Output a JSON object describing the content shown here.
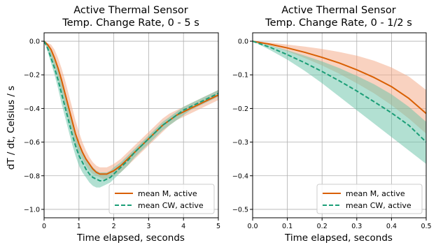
{
  "colors": {
    "mean_m": "#d95f02",
    "mean_cw": "#1b9e77",
    "band_m": "#f4a582",
    "band_cw": "#66c2a5",
    "grid": "#b0b0b0"
  },
  "chart_data": [
    {
      "type": "line",
      "title": "Active Thermal Sensor\nTemp. Change Rate, 0 - 5 s",
      "title_lines": [
        "Active Thermal Sensor",
        "Temp. Change Rate, 0 - 5 s"
      ],
      "xlabel": "Time elapsed, seconds",
      "ylabel": "dT / dt, Celsius / s",
      "xlim": [
        0,
        5
      ],
      "ylim": [
        -1.05,
        0.05
      ],
      "xticks": [
        0,
        1,
        2,
        3,
        4,
        5
      ],
      "xtick_labels": [
        "0",
        "1",
        "2",
        "3",
        "4",
        "5"
      ],
      "yticks": [
        0.0,
        -0.2,
        -0.4,
        -0.6,
        -0.8,
        -1.0
      ],
      "ytick_labels": [
        "0.0",
        "−0.2",
        "−0.4",
        "−0.6",
        "−0.8",
        "−1.0"
      ],
      "grid": true,
      "legend": "lower right",
      "x": [
        0,
        0.1,
        0.2,
        0.3,
        0.4,
        0.5,
        0.6,
        0.7,
        0.8,
        0.9,
        1.0,
        1.1,
        1.2,
        1.3,
        1.4,
        1.5,
        1.6,
        1.7,
        1.8,
        1.9,
        2.0,
        2.2,
        2.4,
        2.6,
        2.8,
        3.0,
        3.2,
        3.4,
        3.6,
        3.8,
        4.0,
        4.2,
        4.4,
        4.6,
        4.8,
        5.0
      ],
      "series": [
        {
          "name": "mean M, active",
          "style": "solid",
          "color": "#d95f02",
          "values": [
            0.0,
            -0.02,
            -0.05,
            -0.1,
            -0.16,
            -0.23,
            -0.31,
            -0.39,
            -0.47,
            -0.55,
            -0.61,
            -0.66,
            -0.7,
            -0.73,
            -0.76,
            -0.78,
            -0.79,
            -0.79,
            -0.79,
            -0.78,
            -0.77,
            -0.74,
            -0.7,
            -0.66,
            -0.62,
            -0.58,
            -0.54,
            -0.5,
            -0.47,
            -0.44,
            -0.42,
            -0.4,
            -0.38,
            -0.36,
            -0.34,
            -0.32
          ],
          "lower": [
            0.0,
            -0.04,
            -0.09,
            -0.15,
            -0.22,
            -0.3,
            -0.38,
            -0.46,
            -0.54,
            -0.61,
            -0.66,
            -0.7,
            -0.74,
            -0.77,
            -0.79,
            -0.8,
            -0.81,
            -0.82,
            -0.82,
            -0.81,
            -0.8,
            -0.78,
            -0.74,
            -0.7,
            -0.66,
            -0.62,
            -0.58,
            -0.54,
            -0.5,
            -0.47,
            -0.45,
            -0.43,
            -0.41,
            -0.39,
            -0.37,
            -0.35
          ],
          "upper": [
            0.0,
            -0.01,
            -0.02,
            -0.05,
            -0.1,
            -0.16,
            -0.23,
            -0.31,
            -0.39,
            -0.47,
            -0.54,
            -0.6,
            -0.65,
            -0.69,
            -0.72,
            -0.74,
            -0.75,
            -0.75,
            -0.75,
            -0.74,
            -0.73,
            -0.7,
            -0.66,
            -0.62,
            -0.58,
            -0.54,
            -0.5,
            -0.46,
            -0.43,
            -0.41,
            -0.39,
            -0.37,
            -0.35,
            -0.33,
            -0.31,
            -0.29
          ]
        },
        {
          "name": "mean CW, active",
          "style": "dashed",
          "color": "#1b9e77",
          "values": [
            0.0,
            -0.04,
            -0.1,
            -0.16,
            -0.23,
            -0.31,
            -0.39,
            -0.47,
            -0.55,
            -0.62,
            -0.68,
            -0.72,
            -0.76,
            -0.79,
            -0.81,
            -0.82,
            -0.83,
            -0.83,
            -0.82,
            -0.81,
            -0.79,
            -0.75,
            -0.71,
            -0.66,
            -0.62,
            -0.58,
            -0.54,
            -0.5,
            -0.47,
            -0.44,
            -0.41,
            -0.39,
            -0.37,
            -0.35,
            -0.33,
            -0.31
          ],
          "lower": [
            0.0,
            -0.06,
            -0.13,
            -0.2,
            -0.28,
            -0.37,
            -0.45,
            -0.53,
            -0.61,
            -0.68,
            -0.74,
            -0.78,
            -0.81,
            -0.84,
            -0.86,
            -0.87,
            -0.87,
            -0.86,
            -0.85,
            -0.84,
            -0.82,
            -0.78,
            -0.74,
            -0.69,
            -0.65,
            -0.61,
            -0.57,
            -0.53,
            -0.5,
            -0.47,
            -0.44,
            -0.41,
            -0.39,
            -0.37,
            -0.35,
            -0.33
          ],
          "upper": [
            0.0,
            -0.02,
            -0.06,
            -0.11,
            -0.17,
            -0.24,
            -0.32,
            -0.4,
            -0.48,
            -0.55,
            -0.61,
            -0.66,
            -0.7,
            -0.73,
            -0.75,
            -0.77,
            -0.78,
            -0.78,
            -0.78,
            -0.77,
            -0.75,
            -0.72,
            -0.68,
            -0.64,
            -0.6,
            -0.56,
            -0.52,
            -0.48,
            -0.45,
            -0.42,
            -0.39,
            -0.37,
            -0.35,
            -0.33,
            -0.31,
            -0.29
          ]
        }
      ]
    },
    {
      "type": "line",
      "title": "Active Thermal Sensor\nTemp. Change Rate, 0 - 1/2 s",
      "title_lines": [
        "Active Thermal Sensor",
        "Temp. Change Rate, 0 - 1/2 s"
      ],
      "xlabel": "Time elapsed, seconds",
      "ylabel": "",
      "xlim": [
        0,
        0.5
      ],
      "ylim": [
        -0.525,
        0.025
      ],
      "xticks": [
        0.0,
        0.1,
        0.2,
        0.3,
        0.4,
        0.5
      ],
      "xtick_labels": [
        "0.0",
        "0.1",
        "0.2",
        "0.3",
        "0.4",
        "0.5"
      ],
      "yticks": [
        0.0,
        -0.1,
        -0.2,
        -0.3,
        -0.4,
        -0.5
      ],
      "ytick_labels": [
        "0.0",
        "−0.1",
        "−0.2",
        "−0.3",
        "−0.4",
        "−0.5"
      ],
      "grid": true,
      "legend": "lower right",
      "x": [
        0.0,
        0.05,
        0.1,
        0.15,
        0.2,
        0.25,
        0.3,
        0.35,
        0.4,
        0.45,
        0.5
      ],
      "series": [
        {
          "name": "mean M, active",
          "style": "solid",
          "color": "#d95f02",
          "values": [
            0.0,
            -0.009,
            -0.02,
            -0.033,
            -0.048,
            -0.065,
            -0.085,
            -0.108,
            -0.135,
            -0.17,
            -0.215
          ],
          "lower": [
            0.0,
            -0.013,
            -0.03,
            -0.05,
            -0.072,
            -0.097,
            -0.125,
            -0.155,
            -0.19,
            -0.23,
            -0.275
          ],
          "upper": [
            0.0,
            -0.004,
            -0.01,
            -0.016,
            -0.023,
            -0.032,
            -0.043,
            -0.058,
            -0.078,
            -0.105,
            -0.145
          ]
        },
        {
          "name": "mean CW, active",
          "style": "dashed",
          "color": "#1b9e77",
          "values": [
            0.0,
            -0.018,
            -0.04,
            -0.064,
            -0.09,
            -0.118,
            -0.148,
            -0.18,
            -0.213,
            -0.25,
            -0.3
          ],
          "lower": [
            0.0,
            -0.026,
            -0.055,
            -0.088,
            -0.125,
            -0.165,
            -0.205,
            -0.245,
            -0.285,
            -0.325,
            -0.365
          ],
          "upper": [
            0.0,
            -0.012,
            -0.027,
            -0.043,
            -0.06,
            -0.08,
            -0.103,
            -0.128,
            -0.158,
            -0.195,
            -0.24
          ]
        }
      ]
    }
  ]
}
